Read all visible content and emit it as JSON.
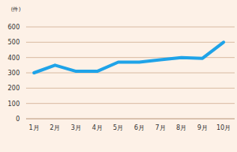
{
  "chart_data": {
    "type": "line",
    "y_label": "(件)",
    "categories": [
      "1月",
      "2月",
      "3月",
      "4月",
      "5月",
      "6月",
      "7月",
      "8月",
      "9月",
      "10月"
    ],
    "values": [
      300,
      350,
      310,
      310,
      370,
      370,
      385,
      400,
      395,
      500
    ],
    "color": "#1fa3e8",
    "ylim": [
      0,
      600
    ],
    "yticks": [
      0,
      100,
      200,
      300,
      400,
      500,
      600
    ],
    "grid": true
  }
}
